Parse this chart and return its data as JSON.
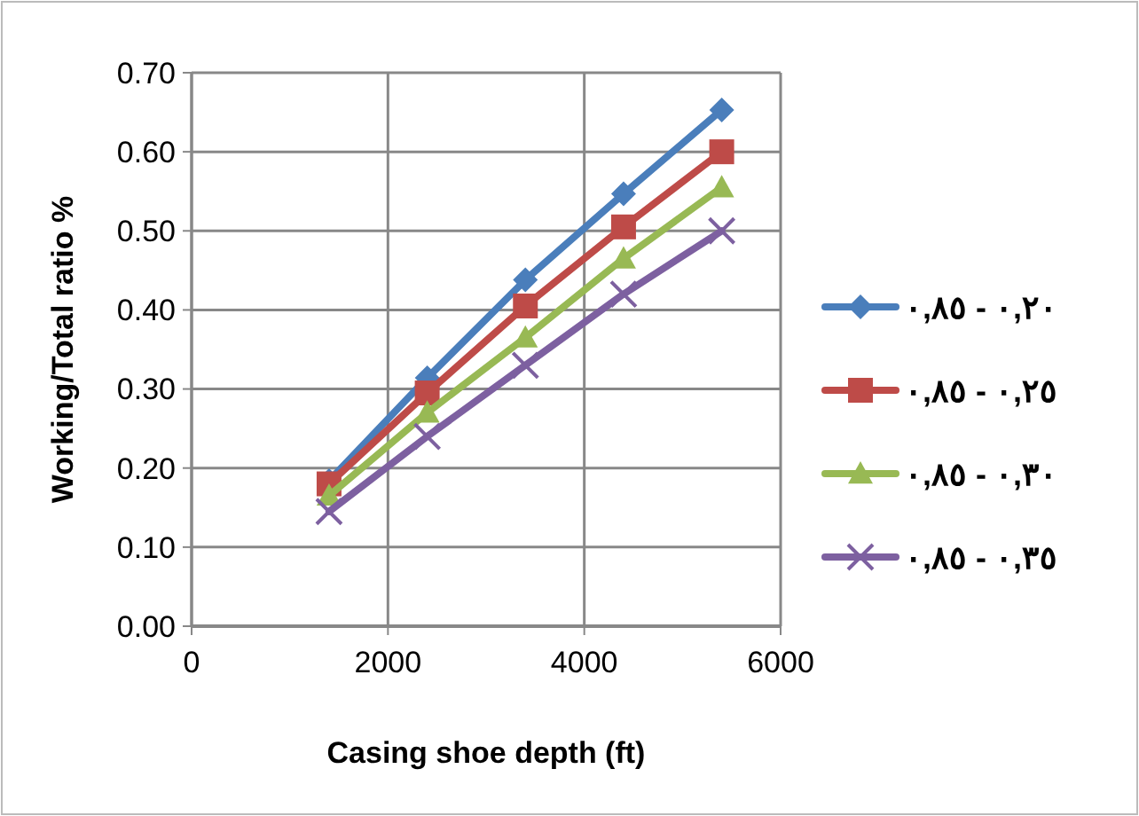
{
  "chart_data": {
    "type": "line",
    "xlabel": "Casing shoe depth (ft)",
    "ylabel": "Working/Total ratio %",
    "x": [
      1400,
      2400,
      3400,
      4400,
      5400
    ],
    "series": [
      {
        "name": "٠,٨٥ - ٠,٢٠",
        "color": "#4a7ebb",
        "marker": "diamond",
        "values": [
          0.184,
          0.314,
          0.438,
          0.547,
          0.653
        ]
      },
      {
        "name": "٠,٨٥ - ٠,٢٥",
        "color": "#be4b48",
        "marker": "square",
        "values": [
          0.18,
          0.295,
          0.405,
          0.505,
          0.6
        ]
      },
      {
        "name": "٠,٨٥ - ٠,٣٠",
        "color": "#98b954",
        "marker": "triangle",
        "values": [
          0.165,
          0.27,
          0.365,
          0.465,
          0.555
        ]
      },
      {
        "name": "٠,٨٥ - ٠,٣٥",
        "color": "#7d60a0",
        "marker": "cross",
        "values": [
          0.145,
          0.24,
          0.33,
          0.42,
          0.5
        ]
      }
    ],
    "xlim": [
      0,
      6000
    ],
    "xticks": [
      0,
      2000,
      4000,
      6000
    ],
    "ylim": [
      0,
      0.7
    ],
    "yticks": [
      {
        "value": 0,
        "label": "0.00"
      },
      {
        "value": 0.1,
        "label": "0.10"
      },
      {
        "value": 0.2,
        "label": "0.20"
      },
      {
        "value": 0.3,
        "label": "0.30"
      },
      {
        "value": 0.4,
        "label": "0.40"
      },
      {
        "value": 0.5,
        "label": "0.50"
      },
      {
        "value": 0.6,
        "label": "0.60"
      },
      {
        "value": 0.7,
        "label": "0.70"
      }
    ],
    "grid": true,
    "legend": "right",
    "line_style": "solid"
  }
}
